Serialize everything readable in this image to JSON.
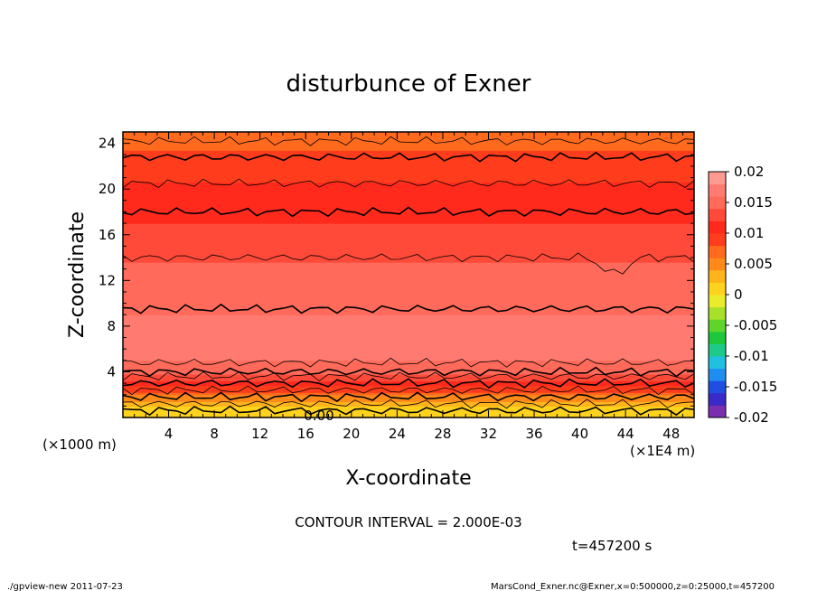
{
  "chart_data": {
    "type": "contour",
    "title": "disturbunce of Exner",
    "xlabel": "X-coordinate",
    "ylabel": "Z-coordinate",
    "x_unit_left": "(×1000 m)",
    "x_unit_right": "(×1E4 m)",
    "x_ticks": [
      "4",
      "8",
      "12",
      "16",
      "20",
      "24",
      "28",
      "32",
      "36",
      "40",
      "44",
      "48"
    ],
    "y_ticks": [
      "4",
      "8",
      "12",
      "16",
      "20",
      "24"
    ],
    "xlim": [
      0,
      50
    ],
    "ylim": [
      0,
      25
    ],
    "contour_label": "0.00",
    "contour_interval_text": "CONTOUR INTERVAL = 2.000E-03",
    "time_text": "t=457200 s",
    "colorbar": {
      "tick_labels": [
        "0.02",
        "0.015",
        "0.01",
        "0.005",
        "0",
        "-0.005",
        "-0.01",
        "-0.015",
        "-0.02"
      ],
      "tick_values": [
        0.02,
        0.015,
        0.01,
        0.005,
        0,
        -0.005,
        -0.01,
        -0.015,
        -0.02
      ],
      "range": [
        -0.02,
        0.02
      ]
    },
    "profile": [
      {
        "z": 0.5,
        "value": 0.0005
      },
      {
        "z": 1.5,
        "value": 0.004
      },
      {
        "z": 2.5,
        "value": 0.009
      },
      {
        "z": 3.5,
        "value": 0.013
      },
      {
        "z": 4.0,
        "value": 0.0145
      },
      {
        "z": 5.0,
        "value": 0.016
      },
      {
        "z": 7.0,
        "value": 0.0175
      },
      {
        "z": 9.0,
        "value": 0.016
      },
      {
        "z": 11.0,
        "value": 0.0155
      },
      {
        "z": 13.5,
        "value": 0.014
      },
      {
        "z": 16.0,
        "value": 0.0125
      },
      {
        "z": 18.0,
        "value": 0.0115
      },
      {
        "z": 20.5,
        "value": 0.01
      },
      {
        "z": 22.5,
        "value": 0.0085
      },
      {
        "z": 25.0,
        "value": 0.007
      }
    ],
    "color_bands": [
      "#7a2fb0",
      "#3a2ac8",
      "#1f4ee0",
      "#1f8ef0",
      "#22c0e0",
      "#1fc98a",
      "#1dc83d",
      "#5fd42a",
      "#a8e02a",
      "#e8ec2a",
      "#ffd21e",
      "#ffb41c",
      "#ff8a1a",
      "#ff6a1c",
      "#ff3c1c",
      "#ff2a1c",
      "#ff4a3a",
      "#ff6a5a",
      "#ff7a70",
      "#ff9a92"
    ]
  },
  "footer": {
    "left": "./gpview-new   2011-07-23",
    "right": "MarsCond_Exner.nc@Exner,x=0:500000,z=0:25000,t=457200"
  }
}
